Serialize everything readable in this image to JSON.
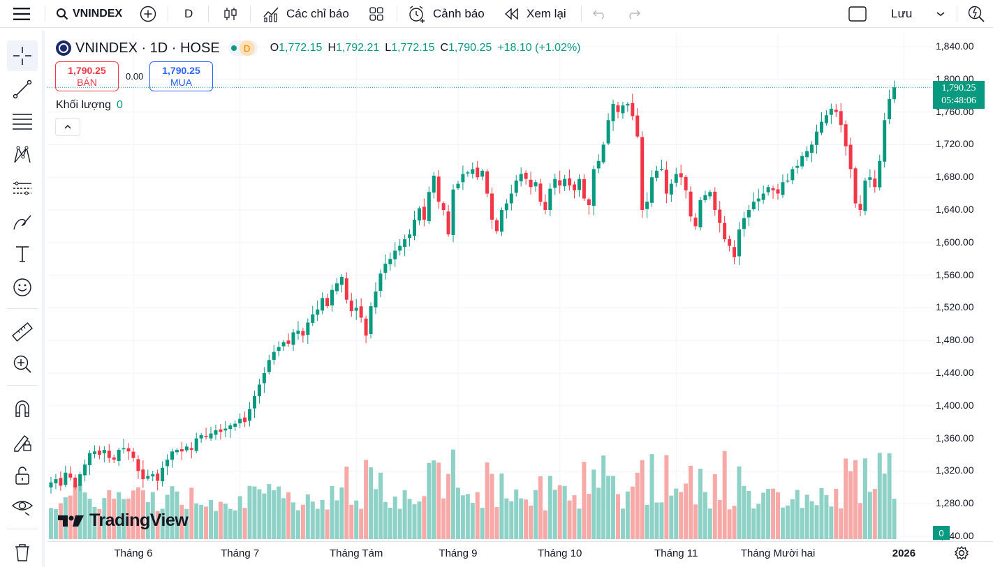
{
  "toolbar": {
    "symbol": "VNINDEX",
    "interval": "D",
    "indicators_label": "Các chỉ báo",
    "alert_label": "Cảnh báo",
    "replay_label": "Xem lại",
    "save_label": "Lưu"
  },
  "legend": {
    "title": "VNINDEX · 1D · HOSE",
    "status_letter": "D",
    "o_key": "O",
    "o": "1,772.15",
    "h_key": "H",
    "h": "1,792.21",
    "l_key": "L",
    "l": "1,772.15",
    "c_key": "C",
    "c": "1,790.25",
    "change": "+18.10 (+1.02%)"
  },
  "trade": {
    "sell_price": "1,790.25",
    "sell_label": "BÁN",
    "spread": "0.00",
    "buy_price": "1,790.25",
    "buy_label": "MUA"
  },
  "volume_pane": {
    "label": "Khối lượng",
    "value": "0"
  },
  "watermark": "TradingView",
  "price_tag": {
    "price": "1,790.25",
    "countdown": "05:48:06"
  },
  "volume_tag": "0",
  "colors": {
    "up": "#089981",
    "down": "#f23645",
    "vol_up": "#8ed1c6",
    "vol_down": "#f7a9a7"
  },
  "chart_data": {
    "type": "candlestick",
    "title": "VNINDEX · 1D · HOSE",
    "ylim": [
      1240,
      1840
    ],
    "y_ticks": [
      "1,840.00",
      "1,800.00",
      "1,760.00",
      "1,720.00",
      "1,680.00",
      "1,640.00",
      "1,600.00",
      "1,560.00",
      "1,520.00",
      "1,480.00",
      "1,440.00",
      "1,400.00",
      "1,360.00",
      "1,320.00",
      "1,280.00",
      "1,240.00"
    ],
    "x_tick_labels": [
      "Tháng 6",
      "Tháng 7",
      "Tháng Tám",
      "Tháng 9",
      "Tháng 10",
      "Tháng 11",
      "Tháng Mười hai",
      "2026"
    ],
    "x_tick_positions": [
      17,
      39,
      63,
      84,
      105,
      129,
      150,
      176
    ],
    "last_price": 1790.25,
    "closes": [
      1306,
      1310,
      1302,
      1318,
      1312,
      1300,
      1316,
      1328,
      1342,
      1344,
      1340,
      1346,
      1336,
      1334,
      1346,
      1348,
      1344,
      1336,
      1320,
      1310,
      1314,
      1316,
      1308,
      1324,
      1334,
      1344,
      1346,
      1344,
      1350,
      1346,
      1360,
      1364,
      1362,
      1366,
      1370,
      1368,
      1372,
      1376,
      1378,
      1384,
      1380,
      1396,
      1412,
      1426,
      1440,
      1456,
      1466,
      1472,
      1478,
      1476,
      1490,
      1492,
      1486,
      1502,
      1512,
      1518,
      1532,
      1522,
      1542,
      1550,
      1558,
      1530,
      1516,
      1520,
      1508,
      1486,
      1522,
      1540,
      1562,
      1574,
      1580,
      1590,
      1596,
      1604,
      1610,
      1628,
      1642,
      1628,
      1662,
      1682,
      1650,
      1640,
      1610,
      1665,
      1672,
      1684,
      1686,
      1690,
      1680,
      1688,
      1660,
      1628,
      1614,
      1640,
      1648,
      1660,
      1676,
      1684,
      1678,
      1668,
      1674,
      1650,
      1640,
      1666,
      1678,
      1670,
      1678,
      1670,
      1664,
      1678,
      1654,
      1646,
      1690,
      1700,
      1720,
      1750,
      1770,
      1760,
      1768,
      1770,
      1755,
      1730,
      1640,
      1650,
      1680,
      1688,
      1690,
      1660,
      1672,
      1684,
      1680,
      1664,
      1632,
      1620,
      1652,
      1658,
      1662,
      1640,
      1624,
      1604,
      1596,
      1582,
      1616,
      1630,
      1640,
      1650,
      1654,
      1660,
      1668,
      1664,
      1660,
      1674,
      1676,
      1690,
      1694,
      1706,
      1712,
      1720,
      1736,
      1748,
      1756,
      1764,
      1760,
      1744,
      1718,
      1690,
      1648,
      1640,
      1676,
      1680,
      1668,
      1700,
      1750,
      1776,
      1790.25
    ],
    "note": "closing values read off price axis; one candle per trading day"
  }
}
